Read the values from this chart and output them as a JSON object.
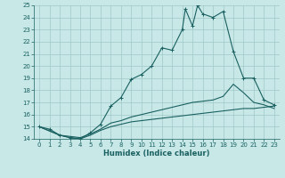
{
  "xlabel": "Humidex (Indice chaleur)",
  "bg_color": "#c8e8e8",
  "grid_color": "#a0c8c8",
  "line_color": "#1a6060",
  "xlim": [
    -0.5,
    23.5
  ],
  "ylim": [
    14,
    25
  ],
  "yticks": [
    14,
    15,
    16,
    17,
    18,
    19,
    20,
    21,
    22,
    23,
    24,
    25
  ],
  "xticks": [
    0,
    1,
    2,
    3,
    4,
    5,
    6,
    7,
    8,
    9,
    10,
    11,
    12,
    13,
    14,
    15,
    16,
    17,
    18,
    19,
    20,
    21,
    22,
    23
  ],
  "line1_x": [
    0,
    1,
    2,
    3,
    4,
    5,
    6,
    7,
    8,
    9,
    10,
    11,
    12,
    13,
    14,
    14.3,
    15,
    15.5,
    16,
    17,
    18,
    19,
    20,
    21,
    22,
    23
  ],
  "line1_y": [
    15.0,
    14.8,
    14.3,
    14.1,
    14.0,
    14.5,
    15.2,
    16.7,
    17.4,
    18.9,
    19.3,
    20.0,
    21.5,
    21.3,
    23.0,
    24.7,
    23.3,
    25.0,
    24.3,
    24.0,
    24.5,
    21.2,
    19.0,
    19.0,
    17.2,
    16.8
  ],
  "line2_x": [
    0,
    2,
    3,
    4,
    5,
    6,
    7,
    8,
    9,
    10,
    11,
    12,
    13,
    14,
    15,
    16,
    17,
    18,
    19,
    20,
    21,
    22,
    23
  ],
  "line2_y": [
    15.0,
    14.3,
    14.2,
    14.1,
    14.4,
    14.8,
    15.3,
    15.5,
    15.8,
    16.0,
    16.2,
    16.4,
    16.6,
    16.8,
    17.0,
    17.1,
    17.2,
    17.5,
    18.5,
    17.8,
    17.0,
    16.8,
    16.5
  ],
  "line3_x": [
    0,
    2,
    3,
    4,
    5,
    6,
    7,
    8,
    9,
    10,
    11,
    12,
    13,
    14,
    15,
    16,
    17,
    18,
    19,
    20,
    21,
    22,
    23
  ],
  "line3_y": [
    15.0,
    14.3,
    14.1,
    14.0,
    14.3,
    14.7,
    15.0,
    15.2,
    15.4,
    15.5,
    15.6,
    15.7,
    15.8,
    15.9,
    16.0,
    16.1,
    16.2,
    16.3,
    16.4,
    16.5,
    16.5,
    16.6,
    16.7
  ],
  "xlabel_fontsize": 6,
  "tick_fontsize": 5,
  "linewidth": 0.8,
  "markersize": 2.2
}
